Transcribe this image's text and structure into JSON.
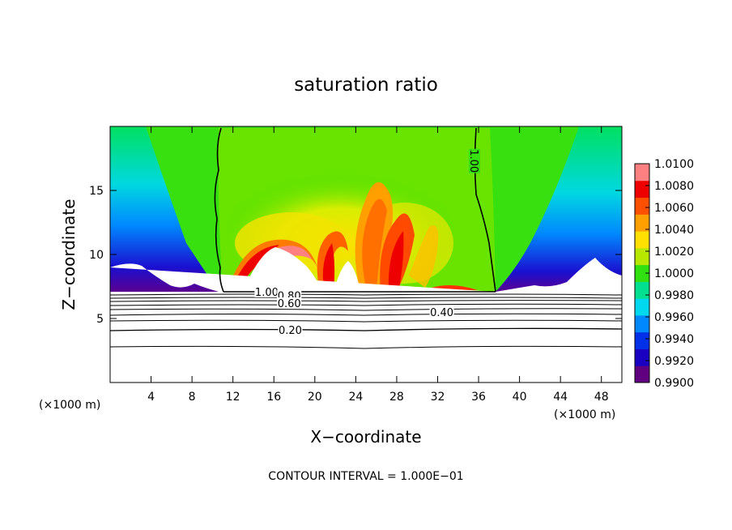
{
  "chart_data": {
    "type": "heatmap",
    "title": "saturation ratio",
    "xlabel": "X−coordinate",
    "ylabel": "Z−coordinate",
    "x_unit_left": "(×1000 m)",
    "x_unit_right": "(×1000 m)",
    "xlim": [
      0,
      50
    ],
    "ylim": [
      0,
      20
    ],
    "x_ticks": [
      4,
      8,
      12,
      16,
      20,
      24,
      28,
      32,
      36,
      40,
      44,
      48
    ],
    "x_tick_labels": [
      "4",
      "8",
      "12",
      "16",
      "20",
      "24",
      "28",
      "32",
      "36",
      "40",
      "44",
      "48"
    ],
    "y_ticks": [
      5,
      10,
      15
    ],
    "y_tick_labels": [
      "5",
      "10",
      "15"
    ],
    "colorbar": {
      "min": 0.99,
      "max": 1.01,
      "labels": [
        "1.0100",
        "1.0080",
        "1.0060",
        "1.0040",
        "1.0020",
        "1.0000",
        "0.9980",
        "0.9960",
        "0.9940",
        "0.9920",
        "0.9900"
      ],
      "colors": [
        "#600080",
        "#1a00c0",
        "#0030e8",
        "#0088ff",
        "#00d8f0",
        "#00e090",
        "#30e010",
        "#b8e800",
        "#ffe000",
        "#ffa000",
        "#ff5000",
        "#ee0000",
        "#ff8080"
      ]
    },
    "contour_labels": [
      {
        "text": "1.00",
        "x": 35.6,
        "y": 17.3,
        "rotate": 90
      },
      {
        "text": "1.00",
        "x": 15.3,
        "y": 7.1,
        "rotate": 0
      },
      {
        "text": "0.80",
        "x": 17.5,
        "y": 6.8,
        "rotate": 0
      },
      {
        "text": "0.60",
        "x": 17.5,
        "y": 6.2,
        "rotate": 0
      },
      {
        "text": "0.40",
        "x": 32.4,
        "y": 5.5,
        "rotate": 0
      },
      {
        "text": "0.20",
        "x": 17.6,
        "y": 4.1,
        "rotate": 0
      }
    ],
    "annotation": "CONTOUR INTERVAL = 1.000E−01"
  }
}
